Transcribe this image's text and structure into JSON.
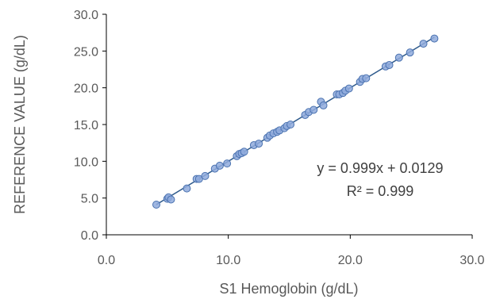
{
  "chart_data": {
    "type": "scatter",
    "title": "",
    "xlabel": "S1 Hemoglobin (g/dL)",
    "ylabel": "REFERENCE VALUE (g/dL)",
    "xlim": [
      0,
      30
    ],
    "ylim": [
      0,
      30
    ],
    "x_ticks": [
      "0.0",
      "10.0",
      "20.0",
      "30.0"
    ],
    "y_ticks": [
      "0.0",
      "5.0",
      "10.0",
      "15.0",
      "20.0",
      "25.0",
      "30.0"
    ],
    "grid": false,
    "legend": "none",
    "marker_color": "#8faadc",
    "marker_edge_color": "#4a72b0",
    "trendline_color": "#2e5a8c",
    "trendline": {
      "slope": 0.999,
      "intercept": 0.0129,
      "x_range": [
        4.1,
        26.9
      ]
    },
    "annotations": [
      "y = 0.999x + 0.0129",
      "R² = 0.999"
    ],
    "series": [
      {
        "points": [
          [
            4.1,
            4.1
          ],
          [
            5.0,
            4.9
          ],
          [
            5.1,
            5.1
          ],
          [
            5.3,
            4.8
          ],
          [
            6.6,
            6.3
          ],
          [
            7.4,
            7.6
          ],
          [
            7.6,
            7.6
          ],
          [
            8.1,
            8.0
          ],
          [
            8.9,
            9.0
          ],
          [
            9.3,
            9.4
          ],
          [
            9.9,
            9.7
          ],
          [
            10.7,
            10.7
          ],
          [
            10.9,
            11.0
          ],
          [
            11.1,
            11.1
          ],
          [
            11.3,
            11.3
          ],
          [
            12.1,
            12.2
          ],
          [
            12.5,
            12.4
          ],
          [
            13.2,
            13.2
          ],
          [
            13.4,
            13.5
          ],
          [
            13.7,
            13.8
          ],
          [
            14.0,
            14.0
          ],
          [
            14.2,
            14.2
          ],
          [
            14.6,
            14.5
          ],
          [
            14.8,
            14.8
          ],
          [
            15.1,
            15.0
          ],
          [
            16.3,
            16.3
          ],
          [
            16.6,
            16.7
          ],
          [
            17.0,
            17.0
          ],
          [
            17.6,
            18.1
          ],
          [
            17.8,
            17.6
          ],
          [
            18.9,
            19.1
          ],
          [
            19.1,
            19.1
          ],
          [
            19.4,
            19.3
          ],
          [
            19.6,
            19.6
          ],
          [
            19.9,
            19.9
          ],
          [
            20.8,
            20.8
          ],
          [
            21.0,
            21.2
          ],
          [
            21.3,
            21.3
          ],
          [
            22.9,
            22.9
          ],
          [
            23.2,
            23.1
          ],
          [
            24.0,
            24.1
          ],
          [
            24.9,
            24.8
          ],
          [
            26.0,
            26.0
          ],
          [
            26.9,
            26.7
          ]
        ]
      }
    ]
  }
}
